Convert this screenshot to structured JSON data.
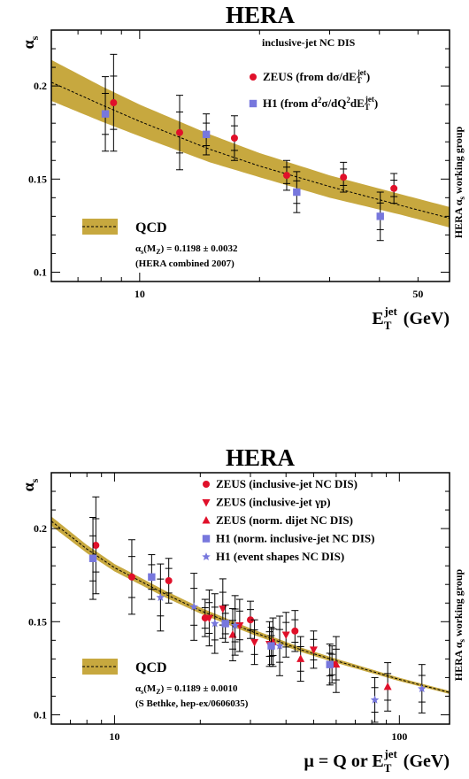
{
  "chart_data": [
    {
      "type": "scatter",
      "title": "HERA",
      "ylabel": "α_s",
      "xlabel": "E_T^jet (GeV)",
      "xscale": "log",
      "xlim": [
        6,
        60
      ],
      "ylim": [
        0.095,
        0.23
      ],
      "x_ticks": [
        10,
        50
      ],
      "y_ticks": [
        0.1,
        0.15,
        0.2
      ],
      "annotation_top": "inclusive-jet NC DIS",
      "side_label": "HERA α_s working group",
      "qcd": {
        "label": "QCD",
        "value_text": "α_s(M_Z) = 0.1198 ± 0.0032",
        "source_text": "(HERA combined 2007)",
        "band_color": "#c7a83f",
        "curve": [
          {
            "x": 6,
            "y": 0.202,
            "lo": 0.192,
            "hi": 0.214
          },
          {
            "x": 8,
            "y": 0.19,
            "lo": 0.181,
            "hi": 0.2
          },
          {
            "x": 10,
            "y": 0.181,
            "lo": 0.173,
            "hi": 0.19
          },
          {
            "x": 15,
            "y": 0.166,
            "lo": 0.159,
            "hi": 0.174
          },
          {
            "x": 20,
            "y": 0.157,
            "lo": 0.151,
            "hi": 0.164
          },
          {
            "x": 30,
            "y": 0.146,
            "lo": 0.14,
            "hi": 0.152
          },
          {
            "x": 45,
            "y": 0.136,
            "lo": 0.131,
            "hi": 0.142
          },
          {
            "x": 60,
            "y": 0.129,
            "lo": 0.124,
            "hi": 0.135
          }
        ]
      },
      "series": [
        {
          "name": "ZEUS (from dσ/dE_T^jet)",
          "legend_main": "ZEUS (from dσ/dE",
          "legend_sup": "jet",
          "legend_end": ")",
          "marker": "circle",
          "color": "#e0102a",
          "points": [
            {
              "x": 8.6,
              "y": 0.191,
              "err": 0.026
            },
            {
              "x": 12.6,
              "y": 0.175,
              "err": 0.02
            },
            {
              "x": 17.3,
              "y": 0.172,
              "err": 0.012
            },
            {
              "x": 23.4,
              "y": 0.152,
              "err": 0.008
            },
            {
              "x": 32.5,
              "y": 0.151,
              "err": 0.008
            },
            {
              "x": 43.5,
              "y": 0.145,
              "err": 0.008
            }
          ]
        },
        {
          "name": "H1 (from d²σ/dQ²dE_T^jet)",
          "legend_main": "H1 (from d",
          "legend_sup2": "2",
          "legend_mid": "σ/dQ",
          "legend_mid2": "dE",
          "legend_sup": "jet",
          "legend_end": ")",
          "marker": "square",
          "color": "#7777dd",
          "points": [
            {
              "x": 8.2,
              "y": 0.185,
              "err": 0.02
            },
            {
              "x": 14.7,
              "y": 0.174,
              "err": 0.011
            },
            {
              "x": 24.8,
              "y": 0.143,
              "err": 0.011
            },
            {
              "x": 40.2,
              "y": 0.13,
              "err": 0.013
            }
          ]
        }
      ]
    },
    {
      "type": "scatter",
      "title": "HERA",
      "ylabel": "α_s",
      "xlabel": "μ = Q or E_T^jet (GeV)",
      "xscale": "log",
      "xlim": [
        6,
        150
      ],
      "ylim": [
        0.095,
        0.23
      ],
      "x_ticks": [
        10,
        100
      ],
      "y_ticks": [
        0.1,
        0.15,
        0.2
      ],
      "side_label": "HERA α_s working group",
      "qcd": {
        "label": "QCD",
        "value_text": "α_s(M_Z) = 0.1189 ± 0.0010",
        "source_text": "(S Bethke, hep-ex/0606035)",
        "band_color": "#c7a83f",
        "curve": [
          {
            "x": 6,
            "y": 0.204,
            "lo": 0.2015,
            "hi": 0.2065
          },
          {
            "x": 8,
            "y": 0.189,
            "lo": 0.1868,
            "hi": 0.1912
          },
          {
            "x": 10,
            "y": 0.179,
            "lo": 0.177,
            "hi": 0.181
          },
          {
            "x": 15,
            "y": 0.165,
            "lo": 0.1632,
            "hi": 0.1668
          },
          {
            "x": 20,
            "y": 0.156,
            "lo": 0.1544,
            "hi": 0.1576
          },
          {
            "x": 30,
            "y": 0.145,
            "lo": 0.1436,
            "hi": 0.1464
          },
          {
            "x": 45,
            "y": 0.135,
            "lo": 0.1338,
            "hi": 0.1362
          },
          {
            "x": 60,
            "y": 0.129,
            "lo": 0.1279,
            "hi": 0.1301
          },
          {
            "x": 100,
            "y": 0.119,
            "lo": 0.1181,
            "hi": 0.1199
          },
          {
            "x": 150,
            "y": 0.112,
            "lo": 0.1112,
            "hi": 0.1128
          }
        ]
      },
      "series": [
        {
          "name": "ZEUS (inclusive-jet NC DIS)",
          "legend_main": "ZEUS (inclusive-jet NC DIS)",
          "marker": "circle",
          "color": "#e0102a",
          "points": [
            {
              "x": 8.6,
              "y": 0.191,
              "err": 0.026
            },
            {
              "x": 11.5,
              "y": 0.174,
              "err": 0.02
            },
            {
              "x": 15.5,
              "y": 0.172,
              "err": 0.012
            },
            {
              "x": 20.8,
              "y": 0.152,
              "err": 0.01
            },
            {
              "x": 30,
              "y": 0.151,
              "err": 0.01
            },
            {
              "x": 43,
              "y": 0.145,
              "err": 0.011
            }
          ]
        },
        {
          "name": "ZEUS (inclusive-jet γp)",
          "legend_main": "ZEUS (inclusive-jet γp)",
          "marker": "triangle-down",
          "color": "#e0102a",
          "points": [
            {
              "x": 21.5,
              "y": 0.152,
              "err": 0.015
            },
            {
              "x": 24,
              "y": 0.157,
              "err": 0.016
            },
            {
              "x": 27.5,
              "y": 0.148,
              "err": 0.014
            },
            {
              "x": 31,
              "y": 0.139,
              "err": 0.012
            },
            {
              "x": 35,
              "y": 0.138,
              "err": 0.012
            },
            {
              "x": 40,
              "y": 0.143,
              "err": 0.012
            },
            {
              "x": 50,
              "y": 0.135,
              "err": 0.01
            },
            {
              "x": 58,
              "y": 0.127,
              "err": 0.01
            }
          ]
        },
        {
          "name": "ZEUS (norm. dijet NC DIS)",
          "legend_main": "ZEUS (norm. dijet NC DIS)",
          "marker": "triangle-up",
          "color": "#e0102a",
          "points": [
            {
              "x": 26,
              "y": 0.143,
              "err": 0.014
            },
            {
              "x": 36,
              "y": 0.139,
              "err": 0.013
            },
            {
              "x": 45,
              "y": 0.13,
              "err": 0.012
            },
            {
              "x": 60,
              "y": 0.127,
              "err": 0.015
            },
            {
              "x": 91,
              "y": 0.115,
              "err": 0.013
            }
          ]
        },
        {
          "name": "H1 (norm. inclusive-jet NC DIS)",
          "legend_main": "H1 (norm. inclusive-jet NC DIS)",
          "marker": "square",
          "color": "#7777dd",
          "points": [
            {
              "x": 8.4,
              "y": 0.184,
              "err": 0.022
            },
            {
              "x": 13.5,
              "y": 0.174,
              "err": 0.012
            },
            {
              "x": 24.5,
              "y": 0.149,
              "err": 0.01
            },
            {
              "x": 35.5,
              "y": 0.137,
              "err": 0.01
            },
            {
              "x": 57,
              "y": 0.127,
              "err": 0.011
            }
          ]
        },
        {
          "name": "H1 (event shapes NC DIS)",
          "legend_main": "H1 (event shapes NC DIS)",
          "marker": "star",
          "color": "#7777dd",
          "points": [
            {
              "x": 14.5,
              "y": 0.163,
              "err": 0.018
            },
            {
              "x": 19,
              "y": 0.158,
              "err": 0.018
            },
            {
              "x": 22.5,
              "y": 0.149,
              "err": 0.016
            },
            {
              "x": 26.5,
              "y": 0.148,
              "err": 0.016
            },
            {
              "x": 38,
              "y": 0.137,
              "err": 0.016
            },
            {
              "x": 82,
              "y": 0.108,
              "err": 0.012
            },
            {
              "x": 120,
              "y": 0.114,
              "err": 0.013
            }
          ]
        }
      ]
    }
  ]
}
